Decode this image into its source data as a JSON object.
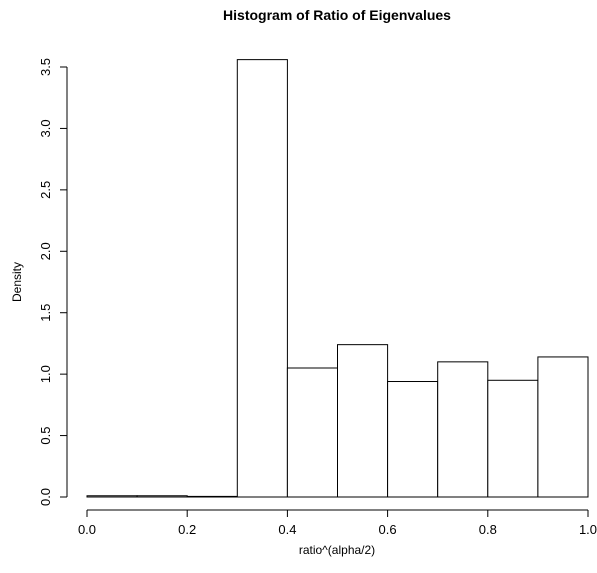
{
  "chart_data": {
    "type": "bar",
    "title": "Histogram of Ratio of Eigenvalues",
    "xlabel": "ratio^(alpha/2)",
    "ylabel": "Density",
    "bins": [
      {
        "from": 0.0,
        "to": 0.1,
        "density": 0.01
      },
      {
        "from": 0.1,
        "to": 0.2,
        "density": 0.01
      },
      {
        "from": 0.2,
        "to": 0.3,
        "density": 0.0
      },
      {
        "from": 0.3,
        "to": 0.4,
        "density": 3.56
      },
      {
        "from": 0.4,
        "to": 0.5,
        "density": 1.05
      },
      {
        "from": 0.5,
        "to": 0.6,
        "density": 1.24
      },
      {
        "from": 0.6,
        "to": 0.7,
        "density": 0.94
      },
      {
        "from": 0.7,
        "to": 0.8,
        "density": 1.1
      },
      {
        "from": 0.8,
        "to": 0.9,
        "density": 0.95
      },
      {
        "from": 0.9,
        "to": 1.0,
        "density": 1.14
      }
    ],
    "xlim": [
      0,
      1
    ],
    "ylim": [
      0,
      3.5
    ],
    "x_ticks": [
      "0.0",
      "0.2",
      "0.4",
      "0.6",
      "0.8",
      "1.0"
    ],
    "y_ticks": [
      "0.0",
      "0.5",
      "1.0",
      "1.5",
      "2.0",
      "2.5",
      "3.0",
      "3.5"
    ],
    "grid": false,
    "bar_fill": "#ffffff",
    "bar_stroke": "#000000"
  }
}
